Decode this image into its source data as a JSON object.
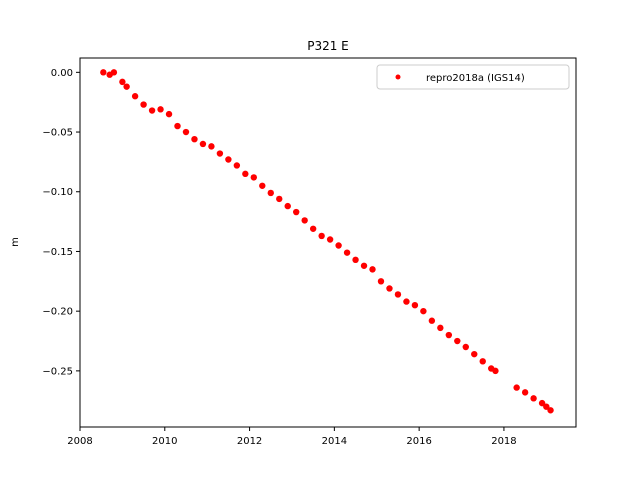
{
  "chart_data": {
    "type": "scatter",
    "title": "P321 E",
    "xlabel": "",
    "ylabel": "m",
    "xlim": [
      2008.0,
      2019.7
    ],
    "ylim": [
      -0.297,
      0.012
    ],
    "x_ticks": [
      2008,
      2010,
      2012,
      2014,
      2016,
      2018
    ],
    "x_tick_labels": [
      "2008",
      "2010",
      "2012",
      "2014",
      "2016",
      "2018"
    ],
    "y_ticks": [
      0.0,
      -0.05,
      -0.1,
      -0.15,
      -0.2,
      -0.25
    ],
    "y_tick_labels": [
      "0.00",
      "−0.05",
      "−0.10",
      "−0.15",
      "−0.20",
      "−0.25"
    ],
    "grid": false,
    "legend_position": "top-right",
    "series": [
      {
        "name": "repro2018a (IGS14)",
        "color": "#ff0000",
        "marker": "dot",
        "points": [
          [
            2008.55,
            0.0
          ],
          [
            2008.7,
            -0.002
          ],
          [
            2008.8,
            0.0
          ],
          [
            2009.0,
            -0.008
          ],
          [
            2009.1,
            -0.012
          ],
          [
            2009.3,
            -0.02
          ],
          [
            2009.5,
            -0.027
          ],
          [
            2009.7,
            -0.032
          ],
          [
            2009.9,
            -0.031
          ],
          [
            2010.1,
            -0.035
          ],
          [
            2010.3,
            -0.045
          ],
          [
            2010.5,
            -0.05
          ],
          [
            2010.7,
            -0.056
          ],
          [
            2010.9,
            -0.06
          ],
          [
            2011.1,
            -0.062
          ],
          [
            2011.3,
            -0.068
          ],
          [
            2011.5,
            -0.073
          ],
          [
            2011.7,
            -0.078
          ],
          [
            2011.9,
            -0.085
          ],
          [
            2012.1,
            -0.088
          ],
          [
            2012.3,
            -0.095
          ],
          [
            2012.5,
            -0.101
          ],
          [
            2012.7,
            -0.106
          ],
          [
            2012.9,
            -0.112
          ],
          [
            2013.1,
            -0.117
          ],
          [
            2013.3,
            -0.124
          ],
          [
            2013.5,
            -0.131
          ],
          [
            2013.7,
            -0.137
          ],
          [
            2013.9,
            -0.14
          ],
          [
            2014.1,
            -0.145
          ],
          [
            2014.3,
            -0.151
          ],
          [
            2014.5,
            -0.157
          ],
          [
            2014.7,
            -0.162
          ],
          [
            2014.9,
            -0.165
          ],
          [
            2015.1,
            -0.175
          ],
          [
            2015.3,
            -0.181
          ],
          [
            2015.5,
            -0.186
          ],
          [
            2015.7,
            -0.192
          ],
          [
            2015.9,
            -0.195
          ],
          [
            2016.1,
            -0.2
          ],
          [
            2016.3,
            -0.208
          ],
          [
            2016.5,
            -0.214
          ],
          [
            2016.7,
            -0.22
          ],
          [
            2016.9,
            -0.225
          ],
          [
            2017.1,
            -0.23
          ],
          [
            2017.3,
            -0.236
          ],
          [
            2017.5,
            -0.242
          ],
          [
            2017.7,
            -0.248
          ],
          [
            2017.8,
            -0.25
          ],
          [
            2018.3,
            -0.264
          ],
          [
            2018.5,
            -0.268
          ],
          [
            2018.7,
            -0.273
          ],
          [
            2018.9,
            -0.277
          ],
          [
            2019.0,
            -0.28
          ],
          [
            2019.1,
            -0.283
          ]
        ]
      }
    ]
  }
}
